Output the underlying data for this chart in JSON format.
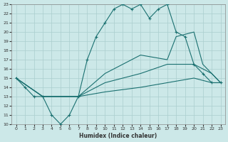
{
  "xlabel": "Humidex (Indice chaleur)",
  "bg_color": "#cce8e8",
  "grid_color": "#aacece",
  "line_color": "#1a7070",
  "xlim": [
    -0.5,
    23.5
  ],
  "ylim": [
    10,
    23
  ],
  "xticks": [
    0,
    1,
    2,
    3,
    4,
    5,
    6,
    7,
    8,
    9,
    10,
    11,
    12,
    13,
    14,
    15,
    16,
    17,
    18,
    19,
    20,
    21,
    22,
    23
  ],
  "yticks": [
    10,
    11,
    12,
    13,
    14,
    15,
    16,
    17,
    18,
    19,
    20,
    21,
    22,
    23
  ],
  "line1_x": [
    0,
    1,
    2,
    3,
    4,
    5,
    6,
    7,
    8,
    9,
    10,
    11,
    12,
    13,
    14,
    15,
    16,
    17,
    18,
    19,
    20,
    21,
    22,
    23
  ],
  "line1_y": [
    15,
    14,
    13,
    13,
    11,
    10,
    11,
    13,
    17,
    19.5,
    21,
    22.5,
    23,
    22.5,
    23,
    21.5,
    22.5,
    23,
    20,
    19.5,
    16.5,
    15.5,
    14.5,
    14.5
  ],
  "line2_x": [
    0,
    3,
    6,
    7,
    10,
    12,
    14,
    17,
    18,
    20,
    21,
    22,
    23
  ],
  "line2_y": [
    15,
    13,
    13,
    13,
    15.5,
    16.5,
    17.5,
    17,
    19.5,
    20,
    16.5,
    15.5,
    14.5
  ],
  "line3_x": [
    0,
    3,
    7,
    10,
    14,
    17,
    20,
    22,
    23
  ],
  "line3_y": [
    15,
    13,
    13,
    14.5,
    15.5,
    16.5,
    16.5,
    15.5,
    14.5
  ],
  "line4_x": [
    0,
    3,
    7,
    10,
    14,
    17,
    20,
    22,
    23
  ],
  "line4_y": [
    15,
    13,
    13,
    13.5,
    14.0,
    14.5,
    15.0,
    14.5,
    14.5
  ]
}
